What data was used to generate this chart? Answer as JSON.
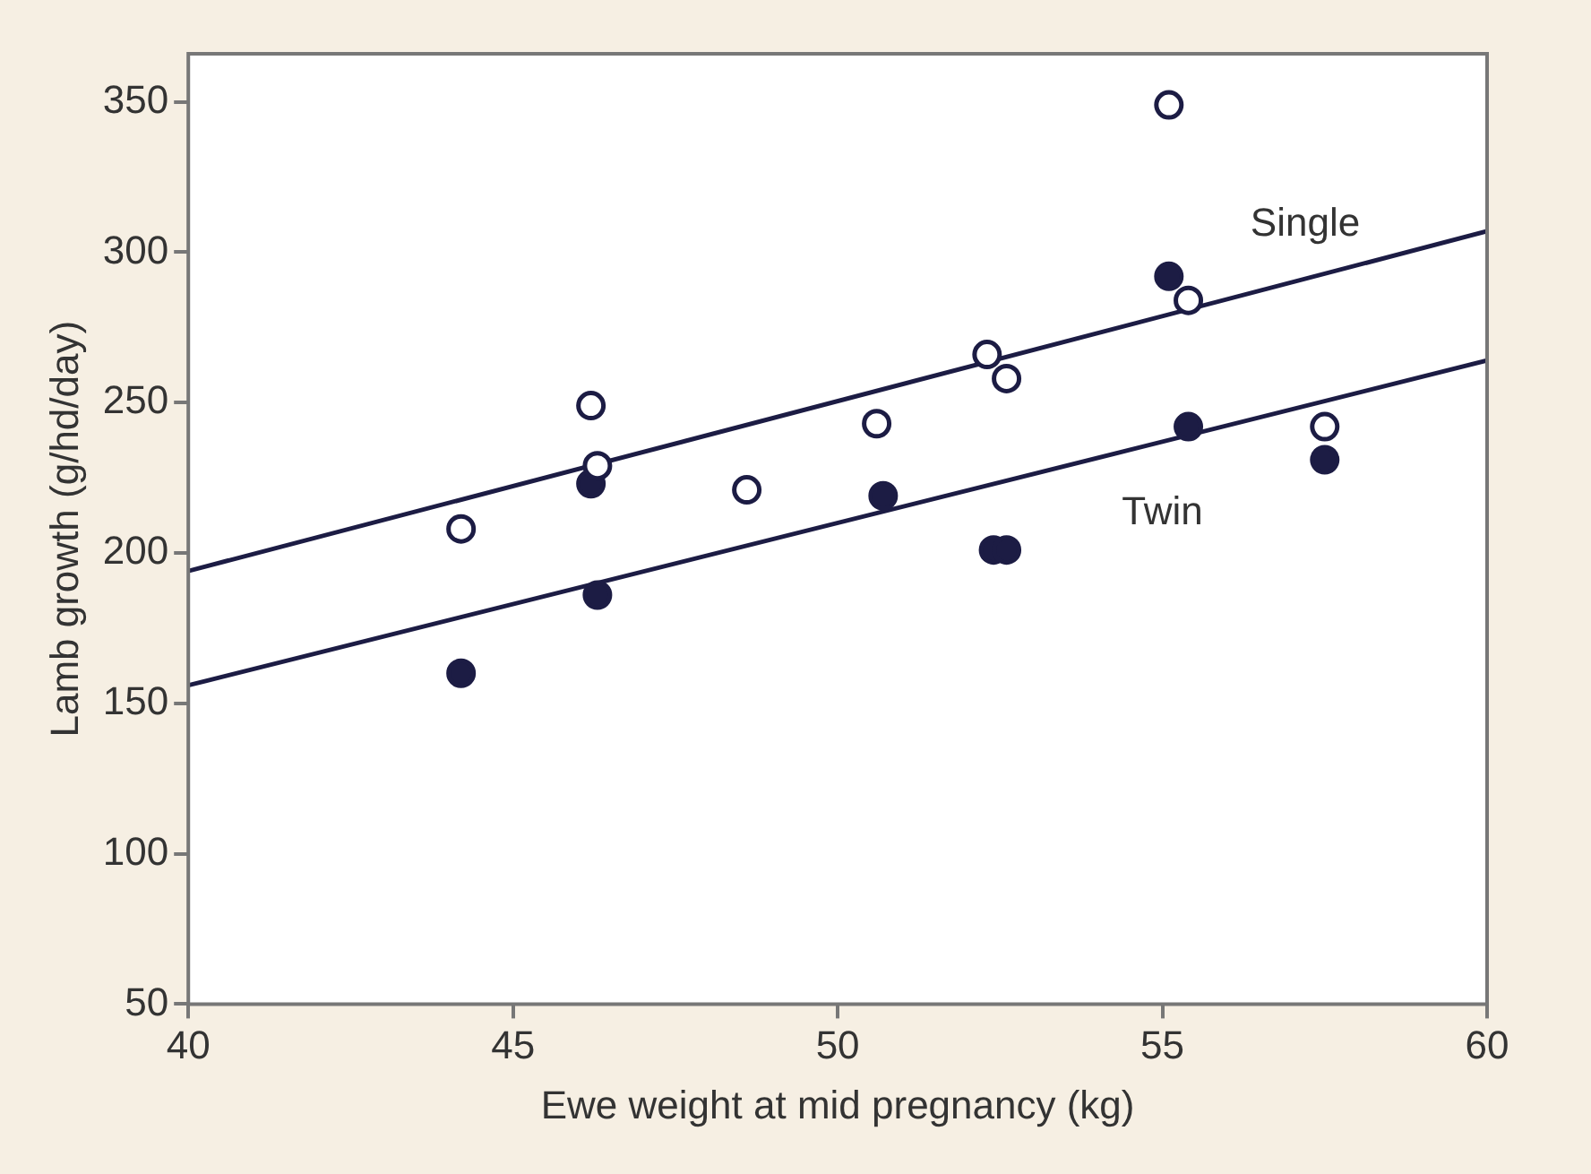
{
  "chart_data": {
    "type": "scatter",
    "xlabel": "Ewe weight at mid pregnancy (kg)",
    "ylabel": "Lamb growth (g/hd/day)",
    "xlim": [
      40,
      60
    ],
    "xticks": [
      40,
      45,
      50,
      55,
      60
    ],
    "ylim": [
      50,
      366
    ],
    "yticks": [
      50,
      100,
      150,
      200,
      250,
      300,
      350
    ],
    "grid": false,
    "legend": false,
    "marker": "circle",
    "series": [
      {
        "color": "#1c1c44",
        "x": [
          44.2,
          46.2,
          46.3,
          48.6,
          50.6,
          52.3,
          52.6,
          55.1,
          55.4,
          57.5
        ],
        "values": [
          208,
          249,
          229,
          221,
          243,
          266,
          258,
          349,
          284,
          242
        ]
      },
      {
        "color": "#1c1c44",
        "x": [
          44.2,
          46.2,
          46.3,
          50.7,
          52.4,
          52.6,
          55.1,
          55.4,
          57.5
        ],
        "values": [
          160,
          223,
          186,
          219,
          201,
          201,
          292,
          242,
          231
        ]
      },
      {
        "type": "line",
        "name": "Single",
        "color": "#1c1c44",
        "line_style": "solid",
        "marker": "none",
        "x": [
          40,
          60
        ],
        "values": [
          194,
          307
        ]
      },
      {
        "type": "line",
        "name": "Twin",
        "color": "#1c1c44",
        "line_style": "solid",
        "marker": "none",
        "x": [
          40,
          60
        ],
        "values": [
          156,
          264
        ]
      }
    ]
  }
}
